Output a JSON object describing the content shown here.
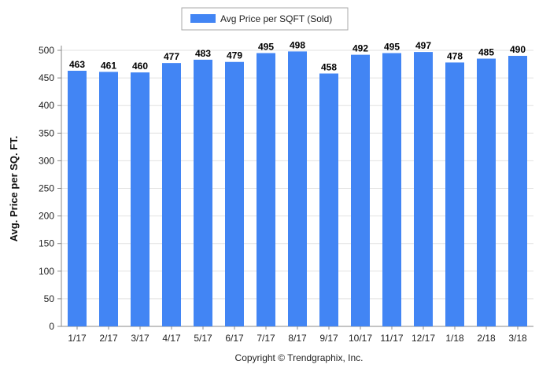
{
  "chart_data": {
    "type": "bar",
    "categories": [
      "1/17",
      "2/17",
      "3/17",
      "4/17",
      "5/17",
      "6/17",
      "7/17",
      "8/17",
      "9/17",
      "10/17",
      "11/17",
      "12/17",
      "1/18",
      "2/18",
      "3/18"
    ],
    "series": [
      {
        "name": "Avg Price per SQFT (Sold)",
        "values": [
          463,
          461,
          460,
          477,
          483,
          479,
          495,
          498,
          458,
          492,
          495,
          497,
          478,
          485,
          490
        ],
        "color": "#4285f4"
      }
    ],
    "ylabel": "Avg. Price per SQ. FT.",
    "xlabel": "",
    "ylim": [
      0,
      500
    ],
    "yticks": [
      0,
      50,
      100,
      150,
      200,
      250,
      300,
      350,
      400,
      450,
      500
    ],
    "grid": true,
    "legend": "top-center",
    "data_labels": true
  },
  "footer": {
    "copyright": "Copyright © Trendgraphix, Inc."
  }
}
